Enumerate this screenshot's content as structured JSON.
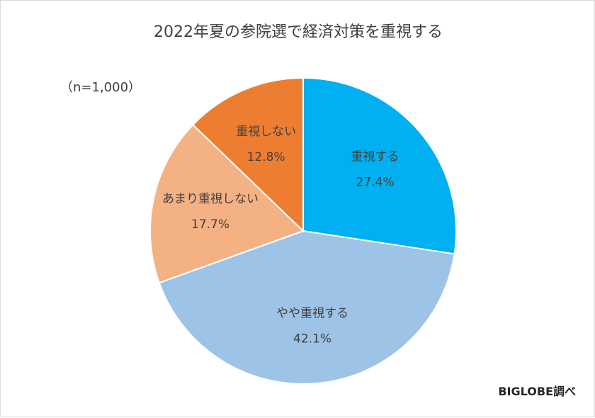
{
  "chart_data": {
    "type": "pie",
    "title": "2022年夏の参院選で経済対策を重視する",
    "note": "（n=1,000）",
    "source": "BIGLOBE調べ",
    "slices": [
      {
        "label": "重視する",
        "value": 27.4,
        "value_label": "27.4%",
        "color": "#00b0f0"
      },
      {
        "label": "やや重視する",
        "value": 42.1,
        "value_label": "42.1%",
        "color": "#9dc3e6"
      },
      {
        "label": "あまり重視しない",
        "value": 17.7,
        "value_label": "17.7%",
        "color": "#f4b183"
      },
      {
        "label": "重視しない",
        "value": 12.8,
        "value_label": "12.8%",
        "color": "#ed7d31"
      }
    ],
    "start_angle": "12 o'clock",
    "direction": "clockwise",
    "legend": "none"
  }
}
